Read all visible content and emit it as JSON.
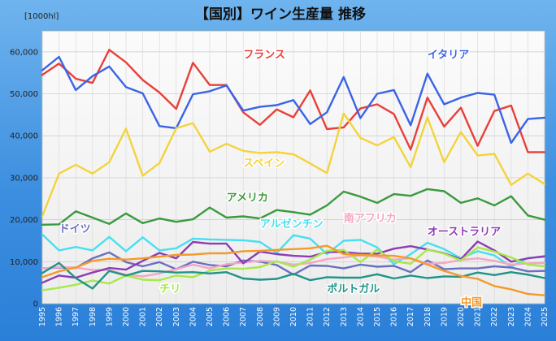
{
  "chart_data": {
    "type": "line",
    "title": "【国別】ワイン生産量 推移",
    "ylabel": "[1000hl]",
    "xlabel": "",
    "ylim": [
      0,
      65000
    ],
    "yticks": [
      0,
      10000,
      20000,
      30000,
      40000,
      50000,
      60000
    ],
    "ytick_labels": [
      "0",
      "10,000",
      "20,000",
      "30,000",
      "40,000",
      "50,000",
      "60,000"
    ],
    "x": [
      "1995",
      "1996",
      "1997",
      "1998",
      "1999",
      "2000",
      "2001",
      "2002",
      "2003",
      "2004",
      "2005",
      "2006",
      "2007",
      "2008",
      "2009",
      "2010",
      "2011",
      "2012",
      "2013",
      "2014",
      "2015",
      "2016",
      "2017",
      "2018",
      "2019",
      "2020",
      "2021",
      "2022",
      "2023",
      "2024",
      "2025"
    ],
    "grid": true,
    "legend": "inline-labels",
    "series": [
      {
        "name": "フランス",
        "color": "#e8403a",
        "values": [
          54500,
          57200,
          53600,
          52600,
          60500,
          57500,
          53300,
          50300,
          46400,
          57400,
          52100,
          52100,
          45600,
          42600,
          46300,
          44400,
          50800,
          41600,
          42000,
          46500,
          47500,
          45200,
          36700,
          49100,
          42200,
          46700,
          37600,
          45900,
          47200,
          36100,
          36100
        ]
      },
      {
        "name": "イタリア",
        "color": "#3a64e6",
        "values": [
          55600,
          58800,
          50900,
          54200,
          56500,
          51600,
          50100,
          42300,
          41800,
          49900,
          50600,
          52000,
          46000,
          46900,
          47300,
          48500,
          42800,
          45600,
          54000,
          44200,
          50000,
          50900,
          42500,
          54800,
          47500,
          49100,
          50200,
          49800,
          38300,
          44000,
          44300
        ]
      },
      {
        "name": "スペイン",
        "color": "#f3d43c",
        "values": [
          20800,
          31000,
          33100,
          31000,
          33700,
          41700,
          30500,
          33500,
          41800,
          43000,
          36200,
          38100,
          36400,
          35900,
          36100,
          35600,
          33400,
          31100,
          45300,
          39500,
          37700,
          39700,
          32500,
          44400,
          33700,
          40900,
          35300,
          35700,
          28300,
          31000,
          28500
        ]
      },
      {
        "name": "アメリカ",
        "color": "#3a9a3e",
        "values": [
          18800,
          18900,
          22000,
          20500,
          19000,
          21500,
          19200,
          20300,
          19500,
          20100,
          22900,
          20500,
          20800,
          20300,
          22300,
          21800,
          21200,
          23400,
          26700,
          25500,
          24000,
          26100,
          25700,
          27300,
          26800,
          24000,
          25100,
          23400,
          25600,
          21000,
          20000
        ]
      },
      {
        "name": "アルゼンチン",
        "color": "#46e0f0",
        "values": [
          16500,
          12700,
          13500,
          12700,
          15900,
          12500,
          15800,
          12700,
          13200,
          15500,
          15300,
          15200,
          15100,
          14700,
          12100,
          16300,
          15500,
          11800,
          15000,
          15200,
          13400,
          9400,
          11800,
          14500,
          13000,
          10800,
          12500,
          11500,
          8800,
          10900,
          11100
        ]
      },
      {
        "name": "ドイツ",
        "color": "#6a70c0",
        "values": [
          8400,
          8600,
          8500,
          10800,
          12200,
          9900,
          8900,
          9900,
          8200,
          10000,
          9200,
          8900,
          10300,
          10000,
          9200,
          6900,
          9100,
          9000,
          8400,
          9300,
          8800,
          9000,
          7500,
          10300,
          8200,
          8400,
          8400,
          8900,
          8600,
          7700,
          7800
        ]
      },
      {
        "name": "南アフリカ",
        "color": "#f4a6c2",
        "values": [
          8400,
          8700,
          8600,
          8000,
          8000,
          6900,
          6500,
          7200,
          8200,
          9300,
          8400,
          9400,
          9800,
          10200,
          10000,
          9300,
          9700,
          10600,
          11000,
          11500,
          11200,
          10500,
          10800,
          9500,
          9700,
          10400,
          10800,
          10200,
          9300,
          9600,
          9700
        ]
      },
      {
        "name": "オーストラリア",
        "color": "#8e3cb4",
        "values": [
          5000,
          6700,
          6200,
          7400,
          8500,
          8100,
          10200,
          12100,
          10800,
          14700,
          14300,
          14300,
          9600,
          12400,
          11800,
          11400,
          11200,
          12300,
          12300,
          11900,
          11900,
          13100,
          13700,
          12900,
          12000,
          10600,
          14800,
          12700,
          10000,
          10800,
          11300
        ]
      },
      {
        "name": "チリ",
        "color": "#a8e84a",
        "values": [
          3200,
          3800,
          4500,
          5500,
          4800,
          6700,
          5700,
          5600,
          6700,
          6300,
          7900,
          8400,
          8300,
          8700,
          10100,
          8800,
          10500,
          12600,
          12800,
          9900,
          12900,
          10100,
          9500,
          12900,
          11900,
          10300,
          13400,
          12400,
          11000,
          9300,
          8900
        ]
      },
      {
        "name": "ポルトガル",
        "color": "#1f9487",
        "values": [
          7300,
          9700,
          6100,
          3600,
          7800,
          6700,
          7800,
          7700,
          7400,
          7500,
          7200,
          7500,
          6000,
          5700,
          5900,
          7100,
          5600,
          6300,
          6200,
          6200,
          7000,
          6000,
          6700,
          6100,
          6500,
          6400,
          7400,
          6800,
          7500,
          6900,
          6100
        ]
      },
      {
        "name": "中国",
        "color": "#f39a2a",
        "values": [
          6300,
          7700,
          8600,
          10200,
          10700,
          10500,
          10800,
          11200,
          11600,
          11700,
          12000,
          12000,
          12500,
          12600,
          12800,
          13000,
          13200,
          13800,
          11800,
          11600,
          11500,
          11400,
          10800,
          9300,
          7800,
          6600,
          5900,
          4200,
          3400,
          2300,
          2000
        ]
      }
    ],
    "labels": [
      {
        "series": "フランス",
        "text": "フランス",
        "at": {
          "x": "2007",
          "y": 58500
        }
      },
      {
        "series": "イタリア",
        "text": "イタリア",
        "at": {
          "x": "2018",
          "y": 58500
        }
      },
      {
        "series": "スペイン",
        "text": "スペイン",
        "at": {
          "x": "2007",
          "y": 32700
        }
      },
      {
        "series": "アメリカ",
        "text": "アメリカ",
        "at": {
          "x": "2006",
          "y": 24500
        }
      },
      {
        "series": "アルゼンチン",
        "text": "アルゼンチン",
        "at": {
          "x": "2008",
          "y": 18200
        }
      },
      {
        "series": "ドイツ",
        "text": "ドイツ",
        "at": {
          "x": "1996",
          "y": 17000
        }
      },
      {
        "series": "南アフリカ",
        "text": "南アフリカ",
        "at": {
          "x": "2013",
          "y": 19500
        }
      },
      {
        "series": "オーストラリア",
        "text": "オーストラリア",
        "at": {
          "x": "2018",
          "y": 16300
        }
      },
      {
        "series": "チリ",
        "text": "チリ",
        "at": {
          "x": "2002",
          "y": 2700
        }
      },
      {
        "series": "ポルトガル",
        "text": "ポルトガル",
        "at": {
          "x": "2012",
          "y": 2700
        }
      },
      {
        "series": "中国",
        "text": "中国",
        "at": {
          "x": "2020",
          "y": -500
        }
      }
    ]
  }
}
